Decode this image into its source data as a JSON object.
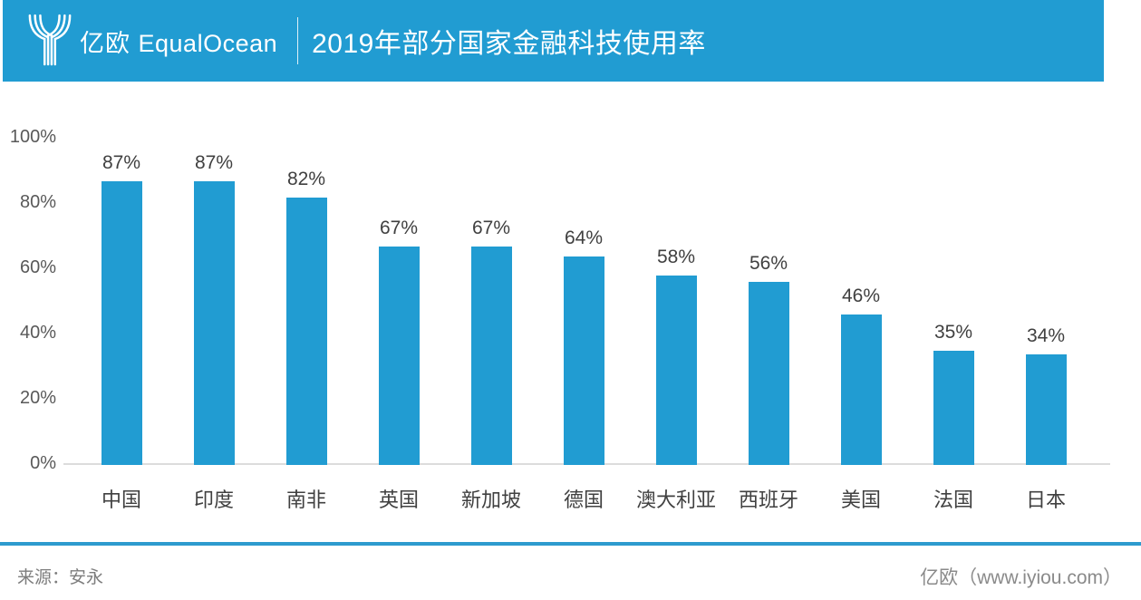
{
  "header": {
    "brand_cn": "亿欧",
    "brand_en": "EqualOcean",
    "title": "2019年部分国家金融科技使用率",
    "background_color": "#219CD2"
  },
  "chart_data": {
    "type": "bar",
    "title": "2019年部分国家金融科技使用率",
    "categories": [
      "中国",
      "印度",
      "南非",
      "英国",
      "新加坡",
      "德国",
      "澳大利亚",
      "西班牙",
      "美国",
      "法国",
      "日本"
    ],
    "values": [
      87,
      87,
      82,
      67,
      67,
      64,
      58,
      56,
      46,
      35,
      34
    ],
    "data_labels": [
      "87%",
      "87%",
      "82%",
      "67%",
      "67%",
      "64%",
      "58%",
      "56%",
      "46%",
      "35%",
      "34%"
    ],
    "unit": "%",
    "xlabel": "",
    "ylabel": "",
    "ylim": [
      0,
      100
    ],
    "y_ticks": [
      "100%",
      "80%",
      "60%",
      "40%",
      "20%",
      "0%"
    ],
    "grid": "off",
    "legend": "none",
    "bar_color": "#219CD2",
    "label_color": "#404040",
    "tick_color": "#595959"
  },
  "footer": {
    "source": "来源：安永",
    "credit": "亿欧（www.iyiou.com）"
  }
}
